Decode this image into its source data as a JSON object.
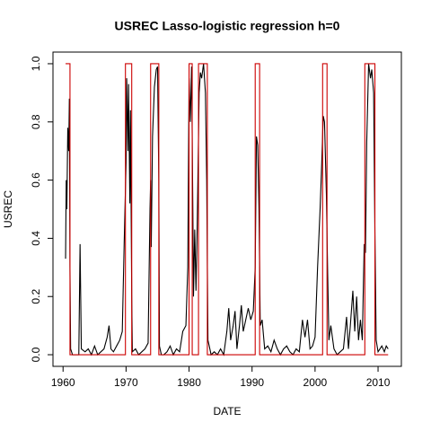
{
  "chart_data": {
    "type": "line",
    "title": "USREC Lasso-logistic regression h=0",
    "x_label": "DATE",
    "y_label": "USREC",
    "xlim": [
      1958.4,
      2013.7
    ],
    "ylim": [
      -0.04,
      1.04
    ],
    "xticks": [
      1960,
      1970,
      1980,
      1990,
      2000,
      2010
    ],
    "yticks": [
      {
        "value": 0,
        "label": "0.0"
      },
      0.2,
      0.4,
      0.6,
      0.8,
      {
        "value": 1,
        "label": "1.0"
      }
    ],
    "series": [
      {
        "color": "#000000",
        "x": [
          1960.4,
          1960.5,
          1960.6,
          1960.75,
          1960.9,
          1961.0,
          1961.1,
          1961.2,
          1961.5,
          1962.0,
          1962.5,
          1962.7,
          1962.9,
          1963.5,
          1964,
          1964.5,
          1965,
          1965.5,
          1966,
          1966.5,
          1967,
          1967.3,
          1967.6,
          1968,
          1968.5,
          1969,
          1969.4,
          1969.7,
          1970.0,
          1970.1,
          1970.3,
          1970.4,
          1970.6,
          1970.7,
          1970.9,
          1971.0,
          1971.5,
          1972,
          1972.5,
          1973,
          1973.5,
          1973.8,
          1973.9,
          1974.0,
          1974.2,
          1974.5,
          1974.8,
          1975.0,
          1975.2,
          1975.3,
          1975.6,
          1976,
          1976.5,
          1977,
          1977.5,
          1978,
          1978.5,
          1979,
          1979.5,
          1979.8,
          1980.0,
          1980.2,
          1980.4,
          1980.6,
          1980.7,
          1980.9,
          1981.1,
          1981.3,
          1981.6,
          1981.8,
          1982.0,
          1982.3,
          1982.6,
          1982.8,
          1983.0,
          1983.5,
          1984,
          1984.5,
          1985,
          1985.5,
          1986,
          1986.3,
          1986.6,
          1987,
          1987.3,
          1987.6,
          1988,
          1988.3,
          1988.6,
          1989,
          1989.4,
          1989.8,
          1990.2,
          1990.5,
          1990.7,
          1990.9,
          1991.1,
          1991.3,
          1991.6,
          1992,
          1992.5,
          1993,
          1993.5,
          1994,
          1994.5,
          1995,
          1995.5,
          1996,
          1996.5,
          1997,
          1997.5,
          1998,
          1998.4,
          1998.8,
          1999.2,
          1999.6,
          2000.0,
          2000.4,
          2000.8,
          2001.0,
          2001.3,
          2001.5,
          2001.8,
          2002.0,
          2002.2,
          2002.5,
          2003,
          2003.5,
          2004,
          2004.5,
          2005,
          2005.3,
          2005.6,
          2006,
          2006.3,
          2006.6,
          2006.9,
          2007.2,
          2007.5,
          2007.8,
          2008.0,
          2008.2,
          2008.5,
          2008.8,
          2009.0,
          2009.3,
          2009.5,
          2009.7,
          2010,
          2010.3,
          2010.6,
          2011,
          2011.3,
          2011.6
        ],
        "values": [
          0.33,
          0.6,
          0.5,
          0.78,
          0.7,
          0.88,
          0.3,
          0.02,
          0.0,
          0.0,
          0.0,
          0.38,
          0.02,
          0.01,
          0.02,
          0.0,
          0.03,
          0.0,
          0.01,
          0.02,
          0.06,
          0.1,
          0.02,
          0.01,
          0.03,
          0.05,
          0.08,
          0.38,
          0.66,
          0.95,
          0.7,
          0.93,
          0.52,
          0.84,
          0.2,
          0.01,
          0.02,
          0.0,
          0.01,
          0.02,
          0.04,
          0.5,
          0.6,
          0.37,
          0.75,
          0.92,
          0.98,
          0.99,
          0.6,
          0.03,
          0.0,
          0.0,
          0.01,
          0.03,
          0.0,
          0.02,
          0.01,
          0.08,
          0.1,
          0.3,
          0.95,
          0.8,
          0.99,
          0.5,
          0.2,
          0.43,
          0.22,
          0.45,
          0.9,
          0.97,
          0.95,
          1.0,
          0.9,
          0.6,
          0.05,
          0.0,
          0.01,
          0.0,
          0.02,
          0.0,
          0.08,
          0.16,
          0.05,
          0.1,
          0.15,
          0.02,
          0.1,
          0.17,
          0.08,
          0.12,
          0.16,
          0.12,
          0.15,
          0.3,
          0.75,
          0.72,
          0.5,
          0.1,
          0.12,
          0.02,
          0.03,
          0.01,
          0.05,
          0.02,
          0.0,
          0.02,
          0.03,
          0.01,
          0.0,
          0.02,
          0.01,
          0.12,
          0.06,
          0.12,
          0.02,
          0.03,
          0.06,
          0.3,
          0.5,
          0.62,
          0.82,
          0.8,
          0.55,
          0.28,
          0.05,
          0.1,
          0.02,
          0.0,
          0.01,
          0.02,
          0.13,
          0.02,
          0.1,
          0.22,
          0.08,
          0.2,
          0.05,
          0.12,
          0.05,
          0.38,
          0.35,
          0.73,
          1.0,
          0.95,
          0.98,
          0.9,
          0.42,
          0.05,
          0.01,
          0.02,
          0.03,
          0.01,
          0.03,
          0.02
        ]
      },
      {
        "color": "#cc0000",
        "x": [
          1960.4,
          1961.1,
          1961.1,
          1969.9,
          1969.9,
          1970.9,
          1970.9,
          1973.9,
          1973.9,
          1975.2,
          1975.2,
          1980.0,
          1980.0,
          1980.5,
          1980.5,
          1981.5,
          1981.5,
          1982.9,
          1982.9,
          1990.5,
          1990.5,
          1991.2,
          1991.2,
          2001.2,
          2001.2,
          2001.9,
          2001.9,
          2007.9,
          2007.9,
          2009.5,
          2009.5,
          2011.6
        ],
        "values": [
          1,
          1,
          0,
          0,
          1,
          1,
          0,
          0,
          1,
          1,
          0,
          0,
          1,
          1,
          0,
          0,
          1,
          1,
          0,
          0,
          1,
          1,
          0,
          0,
          1,
          1,
          0,
          0,
          1,
          1,
          0,
          0
        ]
      }
    ]
  }
}
